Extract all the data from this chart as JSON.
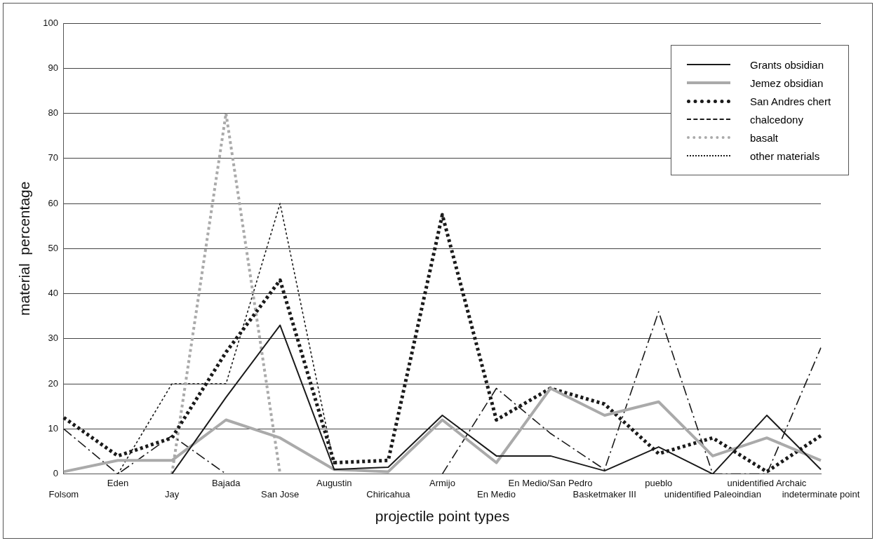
{
  "chart_data": {
    "type": "line",
    "xlabel": "projectile point types",
    "ylabel": "material  percentage",
    "categories": [
      "Folsom",
      "Eden",
      "Jay",
      "Bajada",
      "San Jose",
      "Augustin",
      "Chiricahua",
      "Armijo",
      "En Medio",
      "En Medio/San Pedro",
      "Basketmaker III",
      "pueblo",
      "unidentified Paleoindian",
      "unidentified Archaic",
      "indeterminate point"
    ],
    "series": [
      {
        "name": "Grants obsidian",
        "color": "#1a1a1a",
        "line_style": "solid",
        "values": [
          null,
          null,
          0,
          17,
          33,
          1,
          1.5,
          13,
          4,
          4,
          0.7,
          6,
          0,
          13,
          1
        ]
      },
      {
        "name": "Jemez obsidian",
        "color": "#aaaaaa",
        "line_style": "solid",
        "values": [
          0.5,
          3,
          3,
          12,
          8,
          1,
          0.5,
          12,
          2.5,
          19,
          13,
          16,
          4,
          8,
          3
        ]
      },
      {
        "name": "San Andres chert",
        "color": "#1a1a1a",
        "line_style": "dotted",
        "values": [
          12.5,
          4,
          8,
          27,
          43,
          2.5,
          3,
          57.5,
          12,
          19,
          15.5,
          4.5,
          8,
          0.5,
          8.5
        ]
      },
      {
        "name": "chalcedony",
        "color": "#1a1a1a",
        "line_style": "dashed",
        "values": [
          10,
          0,
          8.5,
          0,
          null,
          null,
          null,
          0,
          19,
          9,
          1,
          36,
          0,
          0,
          28
        ]
      },
      {
        "name": "basalt",
        "color": "#aaaaaa",
        "line_style": "dotted",
        "values": [
          null,
          null,
          0,
          80,
          0,
          null,
          null,
          null,
          null,
          null,
          null,
          null,
          null,
          null,
          null
        ]
      },
      {
        "name": "other materials",
        "color": "#1a1a1a",
        "line_style": "dotted",
        "values": [
          null,
          0,
          20,
          20,
          60,
          2,
          null,
          null,
          null,
          null,
          null,
          null,
          null,
          null,
          null
        ]
      }
    ],
    "ylim": [
      0,
      100
    ],
    "yticks": [
      0,
      10,
      20,
      30,
      40,
      50,
      60,
      70,
      80,
      90,
      100
    ],
    "grid": "y",
    "legend": "top right",
    "marker": "none"
  }
}
